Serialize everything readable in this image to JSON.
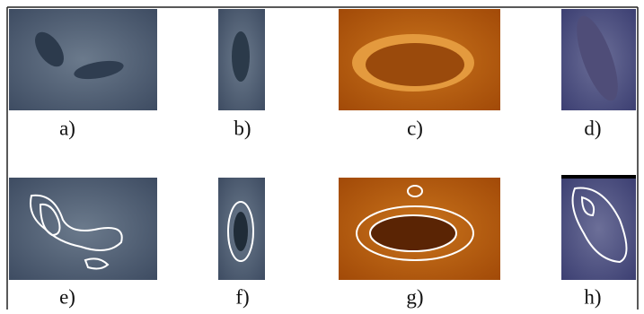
{
  "labels": [
    "a)",
    "b)",
    "c)",
    "d)",
    "e)",
    "f)",
    "g)",
    "h)"
  ]
}
